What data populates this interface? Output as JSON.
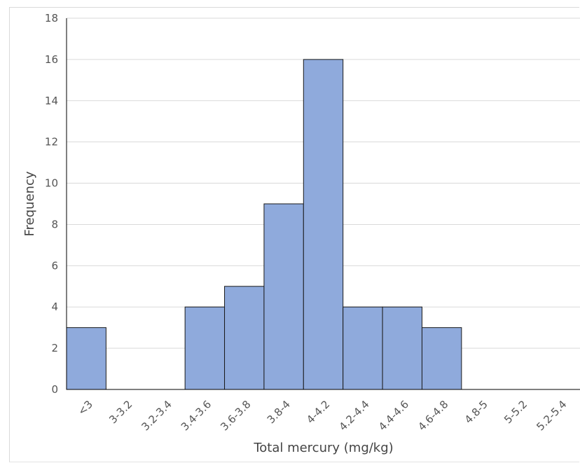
{
  "chart_data": {
    "type": "bar",
    "title": "",
    "xlabel": "Total mercury (mg/kg)",
    "ylabel": "Frequency",
    "categories": [
      "<3",
      "3-3.2",
      "3.2-3.4",
      "3.4-3.6",
      "3.6-3.8",
      "3.8-4",
      "4-4.2",
      "4.2-4.4",
      "4.4-4.6",
      "4.6-4.8",
      "4.8-5",
      "5-5.2",
      "5.2-5.4"
    ],
    "values": [
      3,
      0,
      0,
      4,
      5,
      9,
      16,
      4,
      4,
      3,
      0,
      0,
      0
    ],
    "ylim": [
      0,
      18
    ],
    "yticks": [
      0,
      2,
      4,
      6,
      8,
      10,
      12,
      14,
      16,
      18
    ],
    "grid": true,
    "legend": "none",
    "colors": {
      "bar_fill": "#8faadc",
      "bar_stroke": "#1a1a1a",
      "grid": "#d9d9d9",
      "axis": "#000000"
    }
  }
}
